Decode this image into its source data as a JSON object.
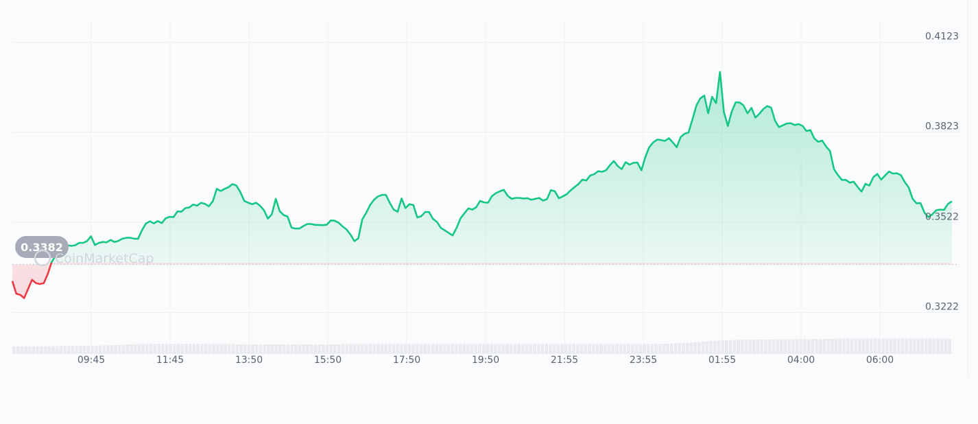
{
  "chart_data": {
    "type": "line",
    "title": "",
    "xlabel": "",
    "ylabel": "",
    "x_ticks": [
      "09:45",
      "11:45",
      "13:50",
      "15:50",
      "17:50",
      "19:50",
      "21:55",
      "23:55",
      "01:55",
      "04:00",
      "06:00"
    ],
    "y_ticks": [
      "0.4123",
      "0.3823",
      "0.3522",
      "0.3222"
    ],
    "ylim": [
      0.3102,
      0.4173
    ],
    "reference_value": 0.3382,
    "reference_label": "0.3382",
    "watermark": "CoinMarketCap",
    "grid": true,
    "colors": {
      "up": "#16c784",
      "down": "#ea3943",
      "badge": "#a6abb7",
      "grid": "#eef0f3",
      "axis_text": "#5b6170",
      "volume": "#e8eaee"
    },
    "series": [
      {
        "values": [
          0.3327,
          0.3285,
          0.3281,
          0.327,
          0.33,
          0.3331,
          0.332,
          0.3317,
          0.332,
          0.335,
          0.339,
          0.3412,
          0.3431,
          0.3436,
          0.3446,
          0.3444,
          0.3446,
          0.3454,
          0.3454,
          0.346,
          0.3476,
          0.3447,
          0.3454,
          0.3457,
          0.3456,
          0.3464,
          0.3457,
          0.3461,
          0.3468,
          0.3471,
          0.3471,
          0.3468,
          0.3468,
          0.3497,
          0.3519,
          0.3526,
          0.3519,
          0.3527,
          0.352,
          0.3536,
          0.3541,
          0.354,
          0.3559,
          0.3558,
          0.357,
          0.3572,
          0.3582,
          0.3578,
          0.3588,
          0.3584,
          0.3576,
          0.3593,
          0.3634,
          0.3627,
          0.3634,
          0.364,
          0.365,
          0.3645,
          0.3623,
          0.3594,
          0.3588,
          0.3583,
          0.3588,
          0.3578,
          0.3563,
          0.3535,
          0.3549,
          0.3601,
          0.356,
          0.3547,
          0.3542,
          0.3505,
          0.3502,
          0.3502,
          0.351,
          0.3517,
          0.3517,
          0.3514,
          0.3514,
          0.3513,
          0.3515,
          0.3529,
          0.3528,
          0.3521,
          0.3509,
          0.3499,
          0.3482,
          0.346,
          0.3469,
          0.3532,
          0.3554,
          0.358,
          0.3598,
          0.3609,
          0.3614,
          0.3614,
          0.3588,
          0.3565,
          0.3558,
          0.3602,
          0.357,
          0.3583,
          0.358,
          0.3539,
          0.3543,
          0.3557,
          0.3557,
          0.3534,
          0.3524,
          0.3504,
          0.3496,
          0.3487,
          0.3479,
          0.3504,
          0.3536,
          0.3553,
          0.3569,
          0.3565,
          0.3573,
          0.3594,
          0.3589,
          0.3588,
          0.361,
          0.362,
          0.3626,
          0.3631,
          0.3611,
          0.3601,
          0.3604,
          0.3604,
          0.3602,
          0.3603,
          0.3598,
          0.3601,
          0.3604,
          0.3595,
          0.36,
          0.363,
          0.3626,
          0.3603,
          0.3609,
          0.3616,
          0.3629,
          0.364,
          0.365,
          0.3665,
          0.3662,
          0.3679,
          0.3683,
          0.3693,
          0.3691,
          0.3696,
          0.3713,
          0.3727,
          0.371,
          0.37,
          0.3723,
          0.3715,
          0.3721,
          0.3722,
          0.3696,
          0.374,
          0.3773,
          0.3789,
          0.3798,
          0.3797,
          0.3794,
          0.3803,
          0.3789,
          0.3773,
          0.3807,
          0.3818,
          0.3822,
          0.3866,
          0.3912,
          0.3936,
          0.3945,
          0.3886,
          0.3941,
          0.392,
          0.4024,
          0.389,
          0.3844,
          0.3892,
          0.3923,
          0.3922,
          0.3912,
          0.3886,
          0.3904,
          0.3872,
          0.3884,
          0.39,
          0.391,
          0.3905,
          0.3861,
          0.384,
          0.3846,
          0.3852,
          0.3853,
          0.3847,
          0.385,
          0.3844,
          0.3827,
          0.383,
          0.3802,
          0.3791,
          0.3795,
          0.3775,
          0.376,
          0.37,
          0.368,
          0.3664,
          0.3664,
          0.3655,
          0.3658,
          0.3641,
          0.3625,
          0.3651,
          0.3645,
          0.3673,
          0.3684,
          0.3665,
          0.3679,
          0.3692,
          0.3685,
          0.3686,
          0.368,
          0.3657,
          0.3639,
          0.3601,
          0.3586,
          0.3587,
          0.3555,
          0.354,
          0.3549,
          0.3563,
          0.3565,
          0.3564,
          0.3584,
          0.3593
        ]
      }
    ],
    "volume": [
      1.0,
      1.0,
      1.0,
      1.01,
      1.01,
      1.02,
      1.02,
      1.03,
      1.03,
      1.04,
      1.05,
      1.05,
      1.06,
      1.07,
      1.08,
      1.09,
      1.1,
      1.11,
      1.12,
      1.13,
      1.15,
      1.17,
      1.19,
      1.21,
      1.24,
      1.27,
      1.3,
      1.33,
      1.37,
      1.41,
      1.45,
      1.48,
      1.51,
      1.53,
      1.55,
      1.56,
      1.56,
      1.56,
      1.56,
      1.56,
      1.56,
      1.56,
      1.56,
      1.56,
      1.56,
      1.56,
      1.56,
      1.56,
      1.55,
      1.54,
      1.53,
      1.52,
      1.51,
      1.5,
      1.49,
      1.48,
      1.47,
      1.46,
      1.45,
      1.44,
      1.44,
      1.44,
      1.44,
      1.44,
      1.44,
      1.44,
      1.44,
      1.44,
      1.44,
      1.44,
      1.44,
      1.44,
      1.44,
      1.44,
      1.44,
      1.44,
      1.44,
      1.44,
      1.44,
      1.44,
      1.44,
      1.44,
      1.45,
      1.46,
      1.47,
      1.48,
      1.49,
      1.5,
      1.51,
      1.52,
      1.53,
      1.53,
      1.53,
      1.53,
      1.53,
      1.53,
      1.53,
      1.53,
      1.53,
      1.53,
      1.53,
      1.53,
      1.53,
      1.53,
      1.53,
      1.53,
      1.53,
      1.53,
      1.53,
      1.53,
      1.53,
      1.53,
      1.53,
      1.53,
      1.53,
      1.53,
      1.53,
      1.53,
      1.53,
      1.53,
      1.53,
      1.53,
      1.53,
      1.53,
      1.53,
      1.53,
      1.53,
      1.53,
      1.53,
      1.53,
      1.53,
      1.53,
      1.53,
      1.53,
      1.53,
      1.53,
      1.53,
      1.53,
      1.53,
      1.53,
      1.53,
      1.53,
      1.53,
      1.53,
      1.53,
      1.53,
      1.53,
      1.53,
      1.53,
      1.53,
      1.53,
      1.53,
      1.53,
      1.53,
      1.53,
      1.53,
      1.53,
      1.53,
      1.53,
      1.53,
      1.53,
      1.54,
      1.55,
      1.56,
      1.57,
      1.58,
      1.6,
      1.62,
      1.65,
      1.68,
      1.71,
      1.75,
      1.8,
      1.86,
      1.93,
      2.0,
      2.08,
      2.15,
      2.22,
      2.28,
      2.33,
      2.38,
      2.42,
      2.45,
      2.48,
      2.5,
      2.52,
      2.53,
      2.54,
      2.55,
      2.56,
      2.57,
      2.58,
      2.59,
      2.6,
      2.61,
      2.62,
      2.63,
      2.64,
      2.65,
      2.66,
      2.67,
      2.68,
      2.69,
      2.7,
      2.71,
      2.72,
      2.73,
      2.74,
      2.75,
      2.76,
      2.77,
      2.78,
      2.78,
      2.78,
      2.78,
      2.78,
      2.78,
      2.78,
      2.78,
      2.78,
      2.78,
      2.78,
      2.78,
      2.78,
      2.78,
      2.78,
      2.78,
      2.78,
      2.78,
      2.78,
      2.78,
      2.78,
      2.78,
      2.78,
      2.78,
      2.78,
      2.78,
      2.78,
      2.78
    ]
  }
}
